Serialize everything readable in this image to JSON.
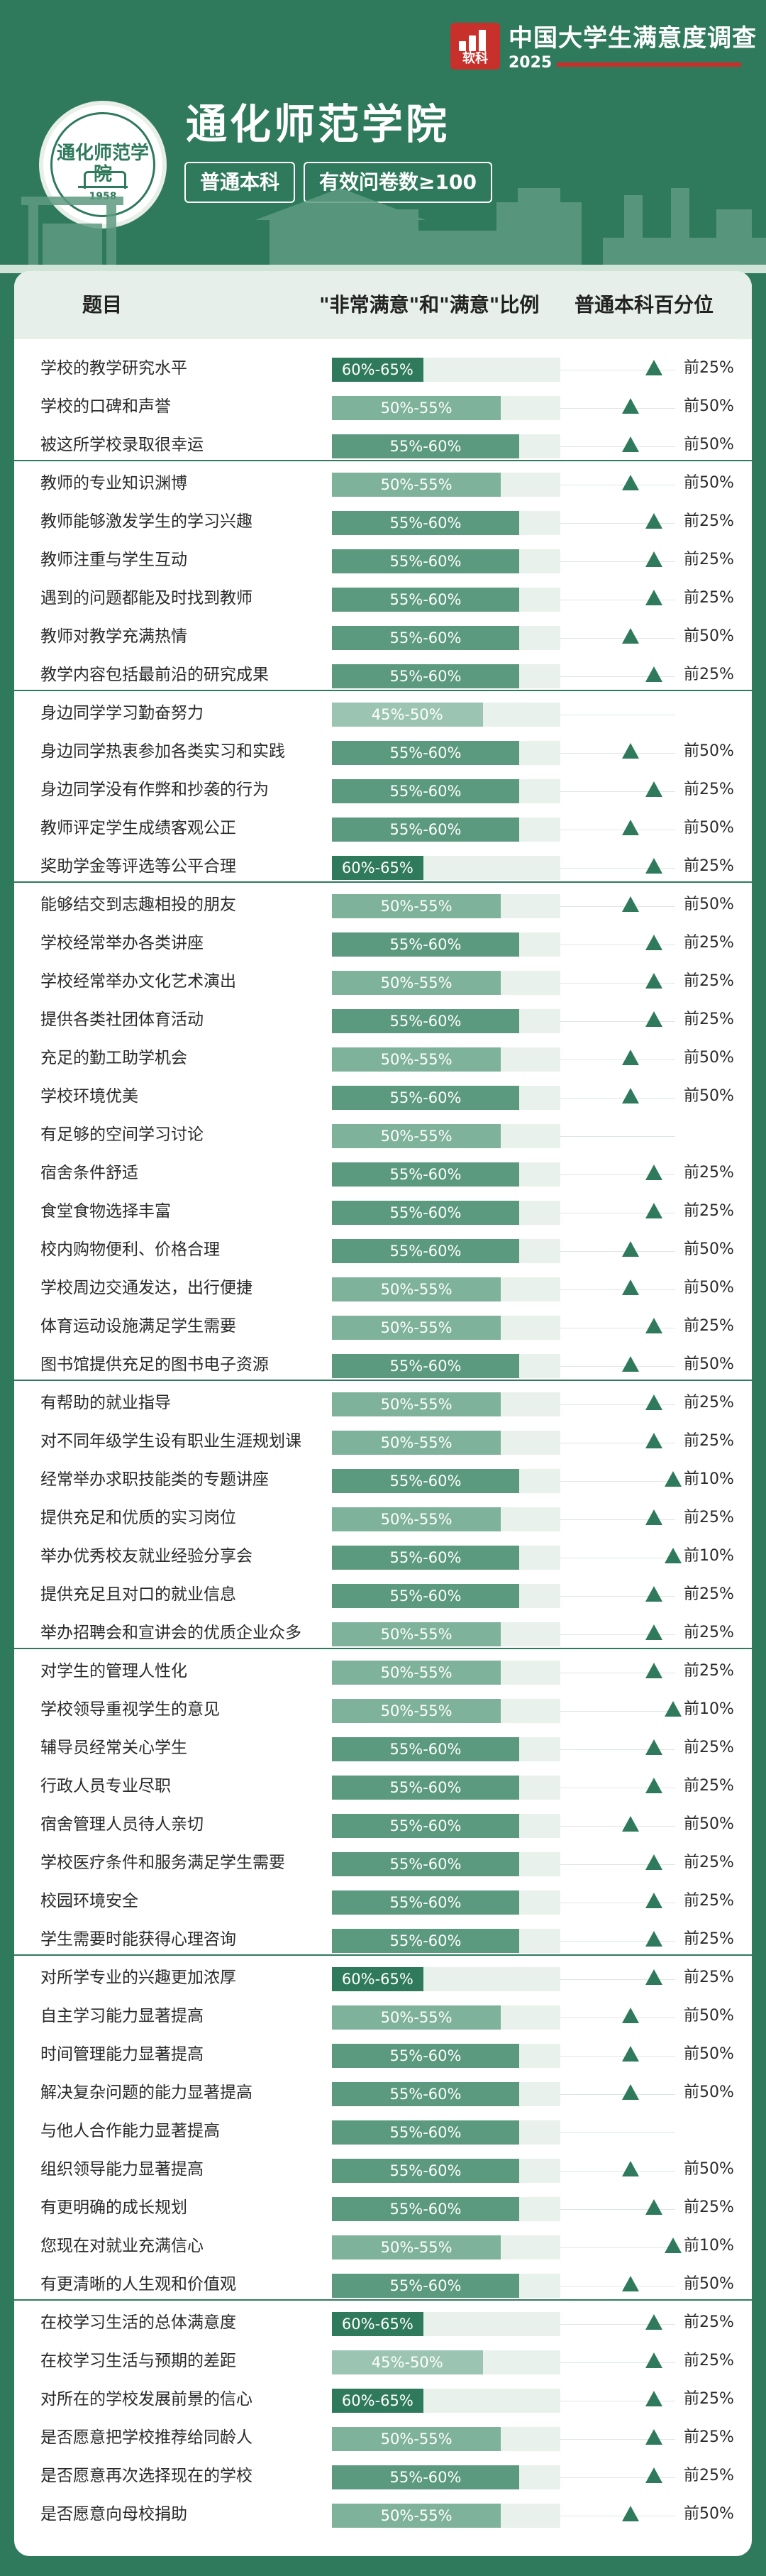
{
  "header": {
    "brand_title": "中国大学生满意度调查",
    "brand_logo_text": "软科",
    "brand_year": "2025",
    "seal_text": "通化师范学院",
    "seal_year": "1958",
    "university_name": "通化师范学院",
    "tags": [
      "普通本科",
      "有效问卷数≥100"
    ]
  },
  "colors": {
    "background": "#2f7a5c",
    "bar_60_65": "#2f7a5c",
    "bar_55_60": "#5c9a80",
    "bar_50_55": "#7fb29b",
    "bar_45_50": "#9bc5b2",
    "brand_red": "#c7302b",
    "track": "#e9f1ec"
  },
  "chart_data": {
    "type": "bar",
    "columns": [
      "题目",
      "\"非常满意\"和\"满意\"比例",
      "普通本科百分位"
    ],
    "groups": [
      {
        "rows": [
          {
            "label": "学校的教学研究水平",
            "range": "60%-65%",
            "pct": "前25%"
          },
          {
            "label": "学校的口碑和声誉",
            "range": "50%-55%",
            "pct": "前50%"
          },
          {
            "label": "被这所学校录取很幸运",
            "range": "55%-60%",
            "pct": "前50%"
          }
        ]
      },
      {
        "rows": [
          {
            "label": "教师的专业知识渊博",
            "range": "50%-55%",
            "pct": "前50%"
          },
          {
            "label": "教师能够激发学生的学习兴趣",
            "range": "55%-60%",
            "pct": "前25%"
          },
          {
            "label": "教师注重与学生互动",
            "range": "55%-60%",
            "pct": "前25%"
          },
          {
            "label": "遇到的问题都能及时找到教师",
            "range": "55%-60%",
            "pct": "前25%"
          },
          {
            "label": "教师对教学充满热情",
            "range": "55%-60%",
            "pct": "前50%"
          },
          {
            "label": "教学内容包括最前沿的研究成果",
            "range": "55%-60%",
            "pct": "前25%"
          }
        ]
      },
      {
        "rows": [
          {
            "label": "身边同学学习勤奋努力",
            "range": "45%-50%",
            "pct": ""
          },
          {
            "label": "身边同学热衷参加各类实习和实践",
            "range": "55%-60%",
            "pct": "前50%"
          },
          {
            "label": "身边同学没有作弊和抄袭的行为",
            "range": "55%-60%",
            "pct": "前25%"
          },
          {
            "label": "教师评定学生成绩客观公正",
            "range": "55%-60%",
            "pct": "前50%"
          },
          {
            "label": "奖助学金等评选等公平合理",
            "range": "60%-65%",
            "pct": "前25%"
          }
        ]
      },
      {
        "rows": [
          {
            "label": "能够结交到志趣相投的朋友",
            "range": "50%-55%",
            "pct": "前50%"
          },
          {
            "label": "学校经常举办各类讲座",
            "range": "55%-60%",
            "pct": "前25%"
          },
          {
            "label": "学校经常举办文化艺术演出",
            "range": "50%-55%",
            "pct": "前25%"
          },
          {
            "label": "提供各类社团体育活动",
            "range": "55%-60%",
            "pct": "前25%"
          },
          {
            "label": "充足的勤工助学机会",
            "range": "50%-55%",
            "pct": "前50%"
          },
          {
            "label": "学校环境优美",
            "range": "55%-60%",
            "pct": "前50%"
          },
          {
            "label": "有足够的空间学习讨论",
            "range": "50%-55%",
            "pct": ""
          },
          {
            "label": "宿舍条件舒适",
            "range": "55%-60%",
            "pct": "前25%"
          },
          {
            "label": "食堂食物选择丰富",
            "range": "55%-60%",
            "pct": "前25%"
          },
          {
            "label": "校内购物便利、价格合理",
            "range": "55%-60%",
            "pct": "前50%"
          },
          {
            "label": "学校周边交通发达，出行便捷",
            "range": "50%-55%",
            "pct": "前50%"
          },
          {
            "label": "体育运动设施满足学生需要",
            "range": "50%-55%",
            "pct": "前25%"
          },
          {
            "label": "图书馆提供充足的图书电子资源",
            "range": "55%-60%",
            "pct": "前50%"
          }
        ]
      },
      {
        "rows": [
          {
            "label": "有帮助的就业指导",
            "range": "50%-55%",
            "pct": "前25%"
          },
          {
            "label": "对不同年级学生设有职业生涯规划课",
            "range": "50%-55%",
            "pct": "前25%"
          },
          {
            "label": "经常举办求职技能类的专题讲座",
            "range": "55%-60%",
            "pct": "前10%"
          },
          {
            "label": "提供充足和优质的实习岗位",
            "range": "50%-55%",
            "pct": "前25%"
          },
          {
            "label": "举办优秀校友就业经验分享会",
            "range": "55%-60%",
            "pct": "前10%"
          },
          {
            "label": "提供充足且对口的就业信息",
            "range": "55%-60%",
            "pct": "前25%"
          },
          {
            "label": "举办招聘会和宣讲会的优质企业众多",
            "range": "50%-55%",
            "pct": "前25%"
          }
        ]
      },
      {
        "rows": [
          {
            "label": "对学生的管理人性化",
            "range": "50%-55%",
            "pct": "前25%"
          },
          {
            "label": "学校领导重视学生的意见",
            "range": "50%-55%",
            "pct": "前10%"
          },
          {
            "label": "辅导员经常关心学生",
            "range": "55%-60%",
            "pct": "前25%"
          },
          {
            "label": "行政人员专业尽职",
            "range": "55%-60%",
            "pct": "前25%"
          },
          {
            "label": "宿舍管理人员待人亲切",
            "range": "55%-60%",
            "pct": "前50%"
          },
          {
            "label": "学校医疗条件和服务满足学生需要",
            "range": "55%-60%",
            "pct": "前25%"
          },
          {
            "label": "校园环境安全",
            "range": "55%-60%",
            "pct": "前25%"
          },
          {
            "label": "学生需要时能获得心理咨询",
            "range": "55%-60%",
            "pct": "前25%"
          }
        ]
      },
      {
        "rows": [
          {
            "label": "对所学专业的兴趣更加浓厚",
            "range": "60%-65%",
            "pct": "前25%"
          },
          {
            "label": "自主学习能力显著提高",
            "range": "50%-55%",
            "pct": "前50%"
          },
          {
            "label": "时间管理能力显著提高",
            "range": "55%-60%",
            "pct": "前50%"
          },
          {
            "label": "解决复杂问题的能力显著提高",
            "range": "55%-60%",
            "pct": "前50%"
          },
          {
            "label": "与他人合作能力显著提高",
            "range": "55%-60%",
            "pct": ""
          },
          {
            "label": "组织领导能力显著提高",
            "range": "55%-60%",
            "pct": "前50%"
          },
          {
            "label": "有更明确的成长规划",
            "range": "55%-60%",
            "pct": "前25%"
          },
          {
            "label": "您现在对就业充满信心",
            "range": "50%-55%",
            "pct": "前10%"
          },
          {
            "label": "有更清晰的人生观和价值观",
            "range": "55%-60%",
            "pct": "前50%"
          }
        ]
      },
      {
        "rows": [
          {
            "label": "在校学习生活的总体满意度",
            "range": "60%-65%",
            "pct": "前25%"
          },
          {
            "label": "在校学习生活与预期的差距",
            "range": "45%-50%",
            "pct": "前25%"
          },
          {
            "label": "对所在的学校发展前景的信心",
            "range": "60%-65%",
            "pct": "前25%"
          },
          {
            "label": "是否愿意把学校推荐给同龄人",
            "range": "50%-55%",
            "pct": "前25%"
          },
          {
            "label": "是否愿意再次选择现在的学校",
            "range": "55%-60%",
            "pct": "前25%"
          },
          {
            "label": "是否愿意向母校捐助",
            "range": "50%-55%",
            "pct": "前50%"
          }
        ]
      }
    ]
  }
}
